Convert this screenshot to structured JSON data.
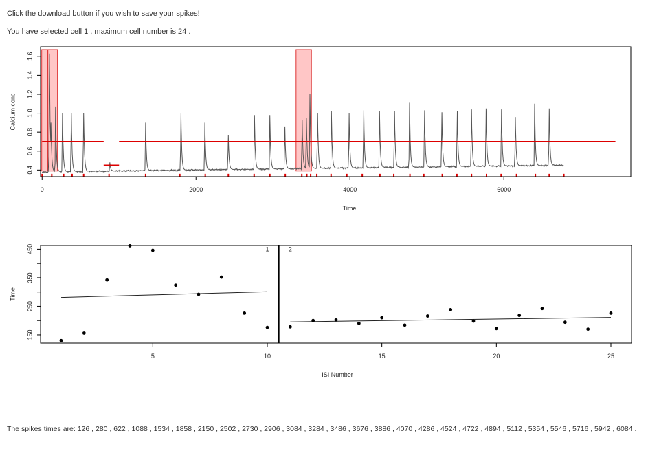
{
  "messages": {
    "download": "Click the download button if you wish to save your spikes!",
    "selection": "You have selected cell 1 , maximum cell number is 24 .",
    "spikes_prefix": "The spikes times are: ",
    "spikes_suffix": " ."
  },
  "colors": {
    "trace": "#555555",
    "threshold": "#dd0000",
    "spike_tick": "#dd0000",
    "highlight_fill": "#ffb3b3",
    "highlight_stroke": "#dd3333",
    "axis": "#000000"
  },
  "chart_data": [
    {
      "type": "line",
      "xlabel": "Time",
      "ylabel": "Calcium conc",
      "xlim": [
        -20,
        7650
      ],
      "ylim": [
        0.33,
        1.7
      ],
      "xticks": [
        0,
        2000,
        4000,
        6000
      ],
      "yticks": [
        0.4,
        0.6,
        0.8,
        1.0,
        1.2,
        1.4,
        1.6
      ],
      "xtick_labels": [
        "0",
        "2000",
        "4000",
        "6000"
      ],
      "ytick_labels": [
        "0.4",
        "0.6",
        "0.8",
        "1.0",
        "1.2",
        "1.4",
        "1.6"
      ],
      "trace_end": 6780,
      "baseline_start": 0.38,
      "baseline_end": 0.45,
      "spike_peaks": [
        {
          "x": 95,
          "y": 1.63
        },
        {
          "x": 115,
          "y": 0.9
        },
        {
          "x": 175,
          "y": 1.07
        },
        {
          "x": 265,
          "y": 1.0
        },
        {
          "x": 380,
          "y": 1.0
        },
        {
          "x": 540,
          "y": 1.0
        },
        {
          "x": 880,
          "y": 0.48
        },
        {
          "x": 1345,
          "y": 0.9
        },
        {
          "x": 1805,
          "y": 1.0
        },
        {
          "x": 2115,
          "y": 0.9
        },
        {
          "x": 2420,
          "y": 0.77
        },
        {
          "x": 2760,
          "y": 0.98
        },
        {
          "x": 2960,
          "y": 0.98
        },
        {
          "x": 3155,
          "y": 0.86
        },
        {
          "x": 3380,
          "y": 0.93
        },
        {
          "x": 3435,
          "y": 0.95
        },
        {
          "x": 3480,
          "y": 1.2
        },
        {
          "x": 3580,
          "y": 1.0
        },
        {
          "x": 3760,
          "y": 1.02
        },
        {
          "x": 3990,
          "y": 1.0
        },
        {
          "x": 4180,
          "y": 1.03
        },
        {
          "x": 4385,
          "y": 1.02
        },
        {
          "x": 4580,
          "y": 1.02
        },
        {
          "x": 4775,
          "y": 1.11
        },
        {
          "x": 4970,
          "y": 1.03
        },
        {
          "x": 5195,
          "y": 1.01
        },
        {
          "x": 5395,
          "y": 1.02
        },
        {
          "x": 5580,
          "y": 1.04
        },
        {
          "x": 5770,
          "y": 1.05
        },
        {
          "x": 5970,
          "y": 1.04
        },
        {
          "x": 6150,
          "y": 0.96
        },
        {
          "x": 6400,
          "y": 1.1
        },
        {
          "x": 6590,
          "y": 1.05
        }
      ],
      "threshold_segments": [
        {
          "x0": 0,
          "x1": 800,
          "y": 0.7
        },
        {
          "x0": 800,
          "x1": 1000,
          "y": 0.45
        },
        {
          "x0": 1000,
          "x1": 7450,
          "y": 0.7
        }
      ],
      "spike_ticks": [
        0,
        126,
        280,
        390,
        540,
        870,
        1345,
        1790,
        2120,
        2420,
        2755,
        2960,
        3160,
        3375,
        3440,
        3490,
        3570,
        3755,
        3960,
        4160,
        4390,
        4570,
        4780,
        4960,
        5200,
        5390,
        5580,
        5775,
        5965,
        6165,
        6410,
        6590,
        6780
      ],
      "highlight_regions": [
        {
          "x0": -5,
          "x1": 75
        },
        {
          "x0": 75,
          "x1": 200
        },
        {
          "x0": 3300,
          "x1": 3500
        }
      ]
    },
    {
      "type": "scatter",
      "xlabel": "ISI Number",
      "ylabel": "Time",
      "xlim": [
        0.1,
        25.9
      ],
      "ylim": [
        121,
        463
      ],
      "xticks": [
        5,
        10,
        15,
        20,
        25
      ],
      "yticks": [
        150,
        200,
        250,
        300,
        350,
        400,
        450
      ],
      "xtick_labels": [
        "5",
        "10",
        "15",
        "20",
        "25"
      ],
      "ytick_labels": [
        "150",
        "",
        "250",
        "",
        "350",
        "",
        "450"
      ],
      "divider_x": 10.5,
      "panel_labels": [
        {
          "text": "1",
          "x": 10.0,
          "y": 448
        },
        {
          "text": "2",
          "x": 11.0,
          "y": 448
        }
      ],
      "points": [
        {
          "x": 1,
          "y": 130
        },
        {
          "x": 2,
          "y": 156
        },
        {
          "x": 3,
          "y": 342
        },
        {
          "x": 4,
          "y": 462
        },
        {
          "x": 5,
          "y": 446
        },
        {
          "x": 6,
          "y": 324
        },
        {
          "x": 7,
          "y": 292
        },
        {
          "x": 8,
          "y": 352
        },
        {
          "x": 9,
          "y": 226
        },
        {
          "x": 10,
          "y": 176
        },
        {
          "x": 11,
          "y": 178
        },
        {
          "x": 12,
          "y": 200
        },
        {
          "x": 13,
          "y": 202
        },
        {
          "x": 14,
          "y": 190
        },
        {
          "x": 15,
          "y": 210
        },
        {
          "x": 16,
          "y": 184
        },
        {
          "x": 17,
          "y": 216
        },
        {
          "x": 18,
          "y": 238
        },
        {
          "x": 19,
          "y": 198
        },
        {
          "x": 20,
          "y": 172
        },
        {
          "x": 21,
          "y": 218
        },
        {
          "x": 22,
          "y": 242
        },
        {
          "x": 23,
          "y": 194
        },
        {
          "x": 24,
          "y": 170
        },
        {
          "x": 25,
          "y": 226
        }
      ],
      "fit_lines": [
        {
          "x0": 1,
          "y0": 281,
          "x1": 10,
          "y1": 301
        },
        {
          "x0": 11,
          "y0": 195,
          "x1": 25,
          "y1": 211
        }
      ]
    }
  ],
  "spike_times": [
    126,
    280,
    622,
    1088,
    1534,
    1858,
    2150,
    2502,
    2730,
    2906,
    3084,
    3284,
    3486,
    3676,
    3886,
    4070,
    4286,
    4524,
    4722,
    4894,
    5112,
    5354,
    5546,
    5716,
    5942,
    6084
  ]
}
